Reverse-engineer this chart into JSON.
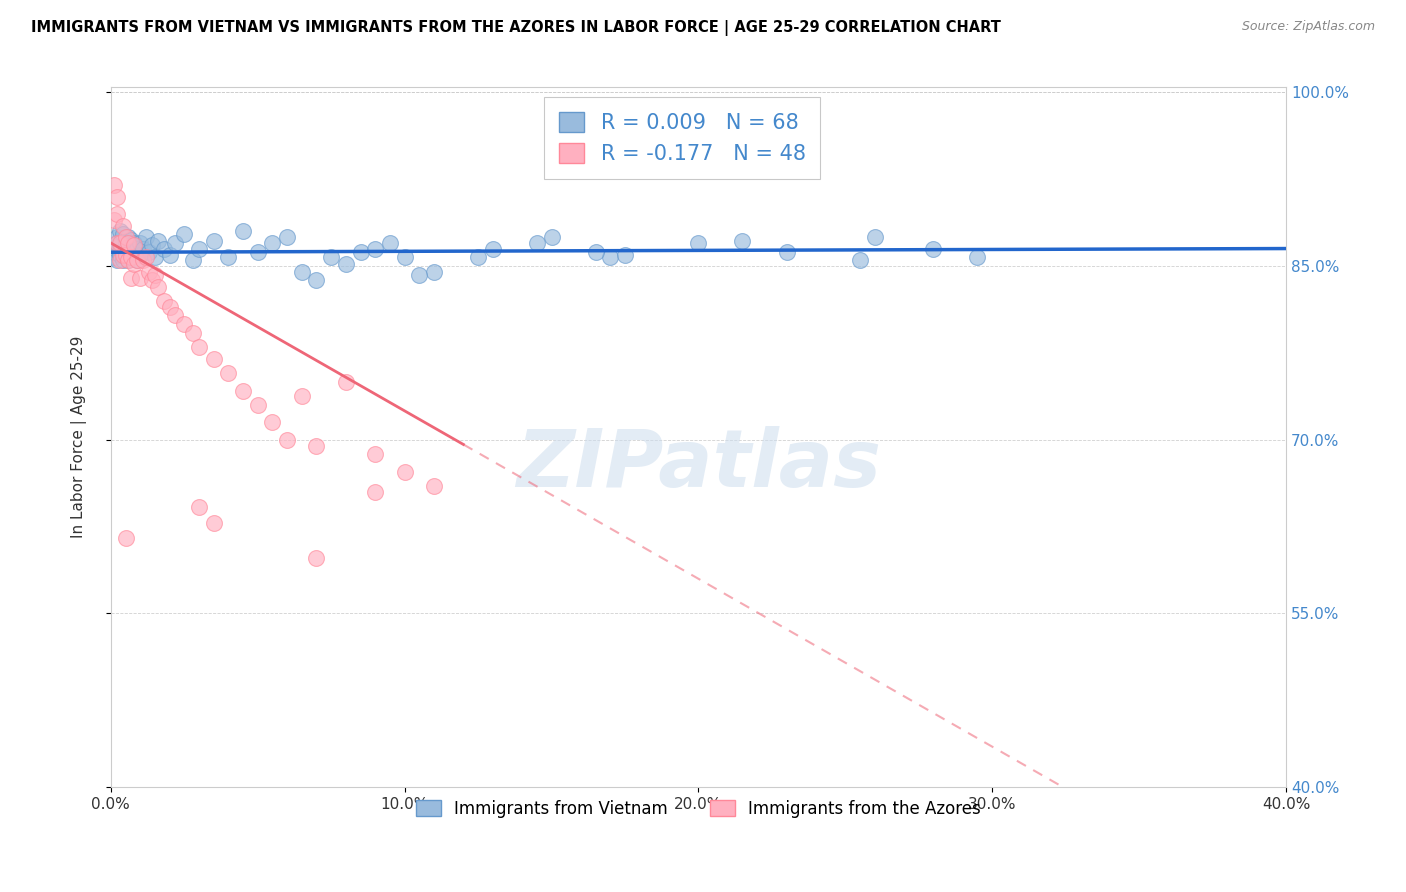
{
  "title": "IMMIGRANTS FROM VIETNAM VS IMMIGRANTS FROM THE AZORES IN LABOR FORCE | AGE 25-29 CORRELATION CHART",
  "source": "Source: ZipAtlas.com",
  "ylabel": "In Labor Force | Age 25-29",
  "xlim": [
    0.0,
    0.4
  ],
  "ylim": [
    0.4,
    1.005
  ],
  "xticks": [
    0.0,
    0.1,
    0.2,
    0.3,
    0.4
  ],
  "xtick_labels": [
    "0.0%",
    "10.0%",
    "20.0%",
    "30.0%",
    "40.0%"
  ],
  "yticks": [
    0.4,
    0.55,
    0.7,
    0.85,
    1.0
  ],
  "ytick_labels": [
    "40.0%",
    "55.0%",
    "70.0%",
    "85.0%",
    "100.0%"
  ],
  "blue_color": "#99BBDD",
  "pink_color": "#FFB0C0",
  "blue_edge_color": "#6699CC",
  "pink_edge_color": "#FF8899",
  "blue_line_color": "#2266CC",
  "pink_line_color": "#EE6677",
  "ytick_color": "#4488CC",
  "R_blue": 0.009,
  "N_blue": 68,
  "R_pink": -0.177,
  "N_pink": 48,
  "legend_label_blue": "Immigrants from Vietnam",
  "legend_label_pink": "Immigrants from the Azores",
  "watermark": "ZIPatlas",
  "blue_x": [
    0.001,
    0.001,
    0.002,
    0.002,
    0.002,
    0.003,
    0.003,
    0.003,
    0.004,
    0.004,
    0.004,
    0.005,
    0.005,
    0.005,
    0.006,
    0.006,
    0.006,
    0.007,
    0.007,
    0.007,
    0.008,
    0.008,
    0.009,
    0.009,
    0.01,
    0.01,
    0.011,
    0.012,
    0.013,
    0.014,
    0.015,
    0.016,
    0.018,
    0.02,
    0.022,
    0.025,
    0.028,
    0.03,
    0.035,
    0.04,
    0.045,
    0.05,
    0.055,
    0.06,
    0.065,
    0.075,
    0.085,
    0.095,
    0.11,
    0.13,
    0.15,
    0.17,
    0.2,
    0.23,
    0.26,
    0.295,
    0.175,
    0.215,
    0.255,
    0.28,
    0.105,
    0.125,
    0.145,
    0.165,
    0.07,
    0.08,
    0.09,
    0.1
  ],
  "blue_y": [
    0.858,
    0.862,
    0.855,
    0.87,
    0.875,
    0.86,
    0.868,
    0.88,
    0.855,
    0.862,
    0.878,
    0.858,
    0.87,
    0.865,
    0.855,
    0.862,
    0.875,
    0.858,
    0.868,
    0.873,
    0.862,
    0.87,
    0.855,
    0.865,
    0.86,
    0.87,
    0.865,
    0.875,
    0.862,
    0.868,
    0.858,
    0.872,
    0.865,
    0.86,
    0.87,
    0.878,
    0.855,
    0.865,
    0.872,
    0.858,
    0.88,
    0.862,
    0.87,
    0.875,
    0.845,
    0.858,
    0.862,
    0.87,
    0.845,
    0.865,
    0.875,
    0.858,
    0.87,
    0.862,
    0.875,
    0.858,
    0.86,
    0.872,
    0.855,
    0.865,
    0.842,
    0.858,
    0.87,
    0.862,
    0.838,
    0.852,
    0.865,
    0.858
  ],
  "pink_x": [
    0.001,
    0.001,
    0.002,
    0.002,
    0.002,
    0.003,
    0.003,
    0.004,
    0.004,
    0.005,
    0.005,
    0.006,
    0.006,
    0.007,
    0.007,
    0.008,
    0.008,
    0.009,
    0.01,
    0.011,
    0.012,
    0.013,
    0.014,
    0.015,
    0.016,
    0.018,
    0.02,
    0.022,
    0.025,
    0.028,
    0.03,
    0.035,
    0.04,
    0.045,
    0.05,
    0.055,
    0.06,
    0.065,
    0.07,
    0.08,
    0.09,
    0.1,
    0.11,
    0.09,
    0.03,
    0.035,
    0.005,
    0.07
  ],
  "pink_y": [
    0.89,
    0.92,
    0.87,
    0.895,
    0.91,
    0.855,
    0.87,
    0.86,
    0.885,
    0.875,
    0.86,
    0.855,
    0.87,
    0.858,
    0.84,
    0.852,
    0.868,
    0.855,
    0.84,
    0.855,
    0.858,
    0.845,
    0.838,
    0.842,
    0.832,
    0.82,
    0.815,
    0.808,
    0.8,
    0.792,
    0.78,
    0.77,
    0.758,
    0.742,
    0.73,
    0.715,
    0.7,
    0.738,
    0.695,
    0.75,
    0.688,
    0.672,
    0.66,
    0.655,
    0.642,
    0.628,
    0.615,
    0.598
  ],
  "pink_line_x_end": 0.12,
  "pink_line_intercept": 0.87,
  "pink_line_slope": -1.45,
  "blue_line_intercept": 0.862,
  "blue_line_slope": 0.008
}
